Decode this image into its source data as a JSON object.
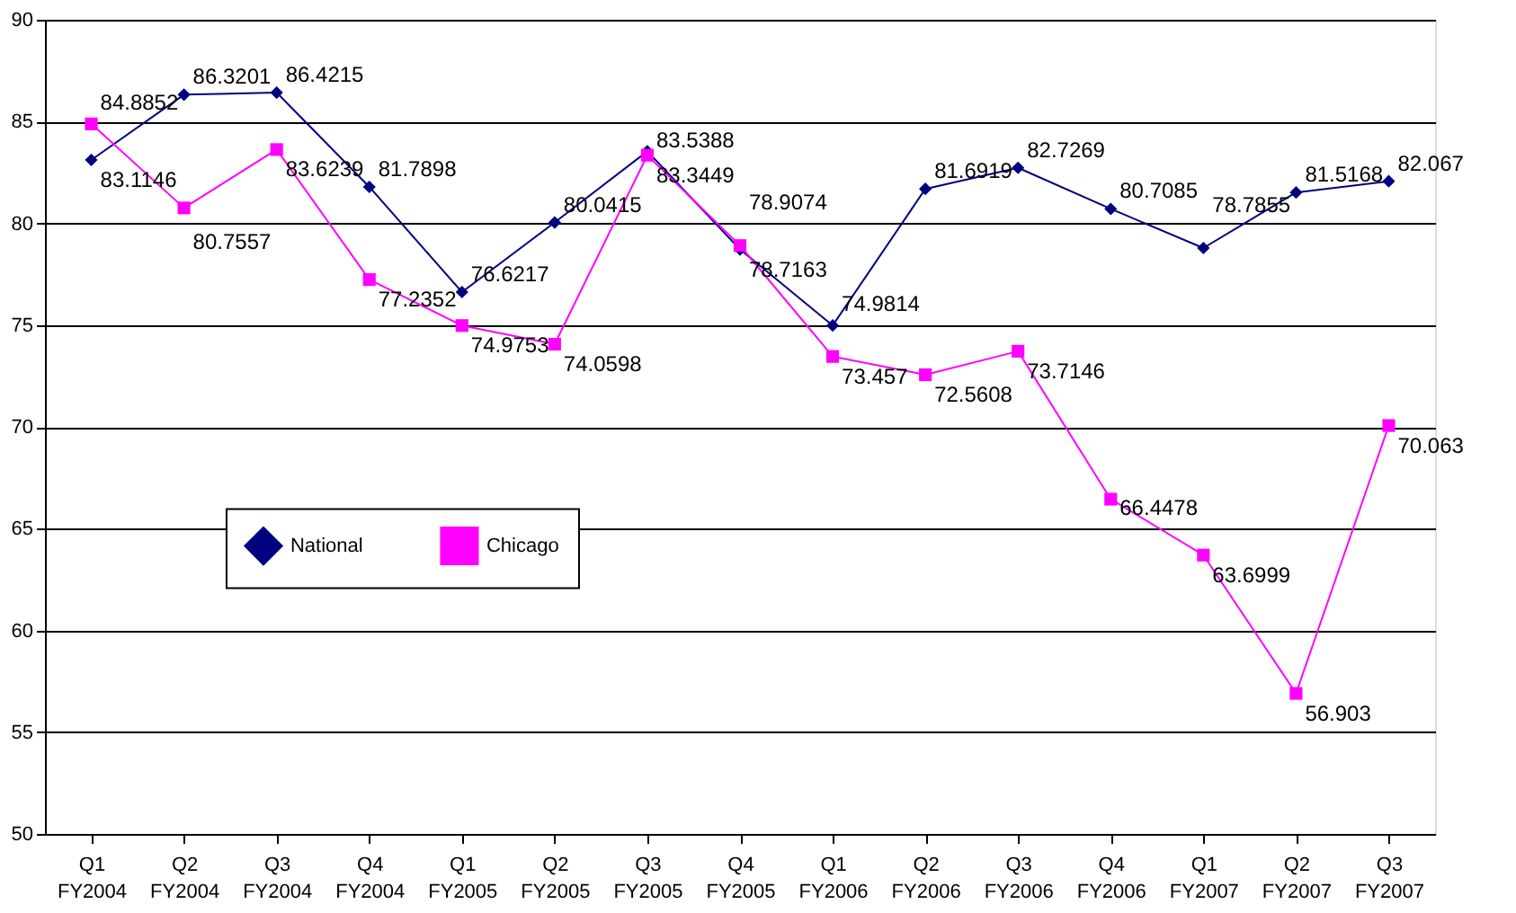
{
  "chart_data": {
    "type": "line",
    "categories": [
      "Q1 FY2004",
      "Q2 FY2004",
      "Q3 FY2004",
      "Q4 FY2004",
      "Q1 FY2005",
      "Q2 FY2005",
      "Q3 FY2005",
      "Q4 FY2005",
      "Q1 FY2006",
      "Q2 FY2006",
      "Q3 FY2006",
      "Q4 FY2006",
      "Q1 FY2007",
      "Q2 FY2007",
      "Q3 FY2007"
    ],
    "series": [
      {
        "name": "National",
        "color": "#000080",
        "marker": "diamond",
        "values": [
          83.1146,
          86.3201,
          86.4215,
          81.7898,
          76.6217,
          80.0415,
          83.5388,
          78.7163,
          74.9814,
          81.6919,
          82.7269,
          80.7085,
          78.7855,
          81.5168,
          82.067
        ]
      },
      {
        "name": "Chicago",
        "color": "#ff00ff",
        "marker": "square",
        "values": [
          84.8852,
          80.7557,
          83.6239,
          77.2352,
          74.9753,
          74.0598,
          83.3449,
          78.9074,
          73.457,
          72.5608,
          73.7146,
          66.4478,
          63.6999,
          56.903,
          70.063
        ]
      }
    ],
    "ylim": [
      50,
      90
    ],
    "yticks": [
      50,
      55,
      60,
      65,
      70,
      75,
      80,
      85,
      90
    ],
    "grid": "y",
    "legend": "left",
    "data_labels": true,
    "line_style": "solid"
  }
}
